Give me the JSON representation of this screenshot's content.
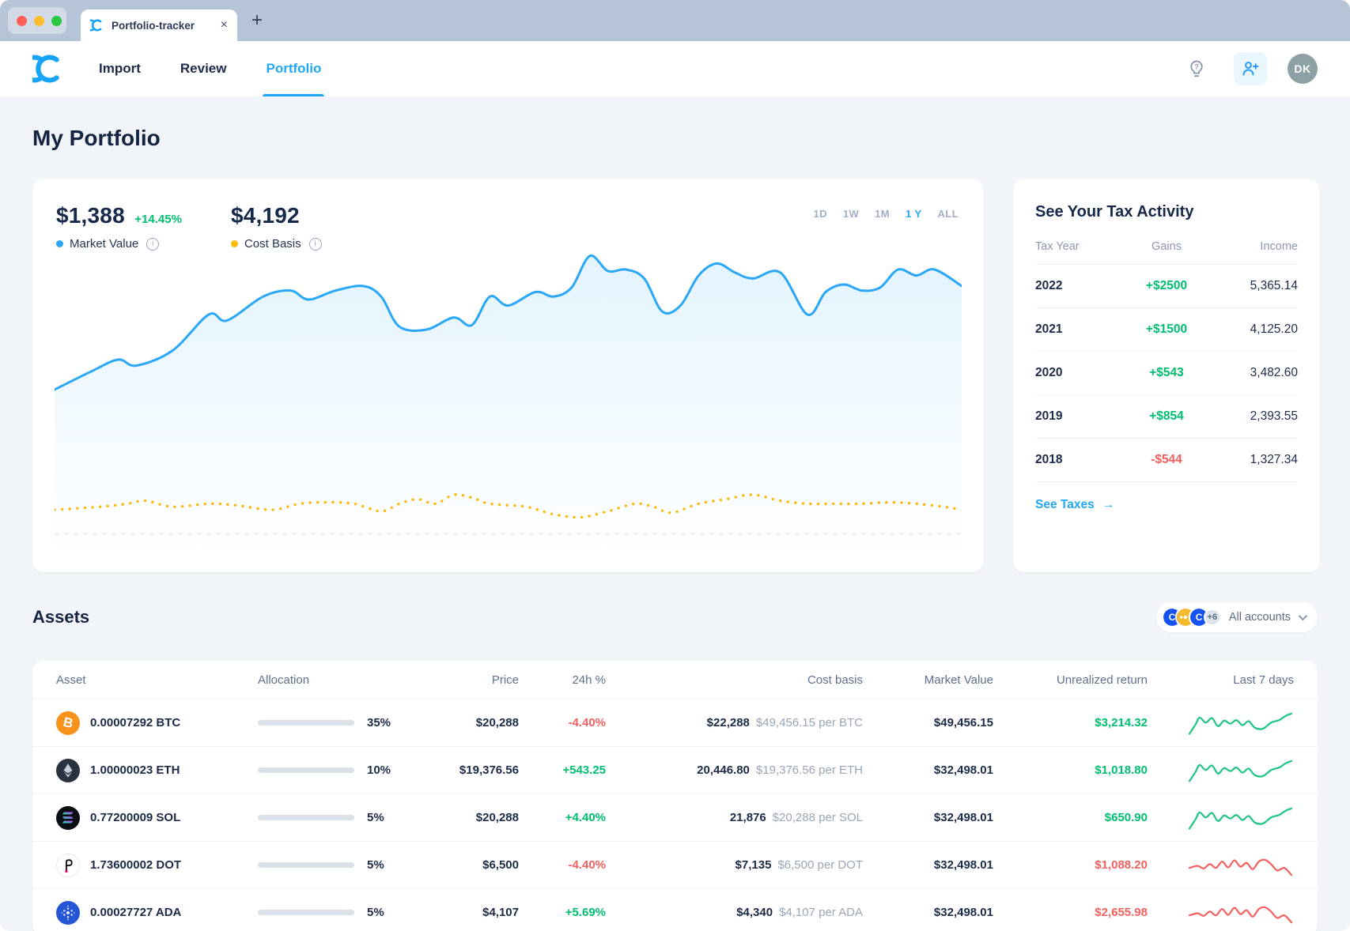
{
  "browser": {
    "tab_title": "Portfolio-tracker"
  },
  "nav": {
    "items": [
      {
        "label": "Import",
        "active": false
      },
      {
        "label": "Review",
        "active": false
      },
      {
        "label": "Portfolio",
        "active": true
      }
    ],
    "avatar_initials": "DK"
  },
  "page": {
    "title": "My Portfolio",
    "assets_heading": "Assets"
  },
  "colors": {
    "accent": "#21A8F5",
    "positive": "#00BF6F",
    "negative": "#F4605E",
    "market_value_blue": "#2AA7F7",
    "cost_basis_yellow": "#FBB90A",
    "spark_up": "#1EC483",
    "spark_down": "#F4605E"
  },
  "chart_card": {
    "market_value": {
      "amount": "$1,388",
      "change": "+14.45%",
      "label": "Market Value"
    },
    "cost_basis": {
      "amount": "$4,192",
      "label": "Cost Basis"
    },
    "ranges": [
      {
        "label": "1D",
        "active": false
      },
      {
        "label": "1W",
        "active": false
      },
      {
        "label": "1M",
        "active": false
      },
      {
        "label": "1 Y",
        "active": true
      },
      {
        "label": "ALL",
        "active": false
      }
    ]
  },
  "chart_data": {
    "type": "line",
    "title": "Portfolio value over 1 year",
    "legend": [
      "Market Value",
      "Cost Basis"
    ],
    "grid": false,
    "baseline_pct": 93,
    "series": [
      {
        "name": "Market Value",
        "color": "#2AA7F7",
        "style": "solid",
        "fill": true,
        "points": [
          [
            0,
            45
          ],
          [
            4,
            39
          ],
          [
            7,
            35
          ],
          [
            9,
            37
          ],
          [
            13,
            32
          ],
          [
            17,
            20
          ],
          [
            19,
            22
          ],
          [
            23,
            14
          ],
          [
            26,
            12
          ],
          [
            28,
            15
          ],
          [
            31,
            12
          ],
          [
            34,
            10.5
          ],
          [
            36,
            14
          ],
          [
            38,
            24
          ],
          [
            41,
            25
          ],
          [
            44,
            21
          ],
          [
            46,
            23.5
          ],
          [
            48,
            14
          ],
          [
            50,
            17
          ],
          [
            53,
            12.5
          ],
          [
            55,
            14
          ],
          [
            57,
            11
          ],
          [
            59,
            0.5
          ],
          [
            61,
            5.5
          ],
          [
            63,
            5
          ],
          [
            65,
            8
          ],
          [
            67,
            19
          ],
          [
            69,
            17
          ],
          [
            71,
            7
          ],
          [
            73,
            3
          ],
          [
            75,
            6
          ],
          [
            77,
            8
          ],
          [
            80,
            6
          ],
          [
            83,
            20
          ],
          [
            85,
            12.5
          ],
          [
            87,
            10
          ],
          [
            89,
            12
          ],
          [
            91,
            11
          ],
          [
            93,
            5
          ],
          [
            95,
            7
          ],
          [
            97,
            5
          ],
          [
            100,
            10.5
          ]
        ]
      },
      {
        "name": "Cost Basis",
        "color": "#FBB90A",
        "style": "dotted",
        "fill": false,
        "points": [
          [
            0,
            85
          ],
          [
            5,
            84
          ],
          [
            8,
            83
          ],
          [
            10,
            82
          ],
          [
            13,
            84
          ],
          [
            17,
            83
          ],
          [
            20,
            83.5
          ],
          [
            24,
            85
          ],
          [
            27,
            83
          ],
          [
            30,
            82.5
          ],
          [
            33,
            83
          ],
          [
            36,
            85.5
          ],
          [
            38,
            83
          ],
          [
            40,
            81.5
          ],
          [
            42,
            83
          ],
          [
            44,
            80
          ],
          [
            46,
            81
          ],
          [
            48,
            83
          ],
          [
            52,
            84
          ],
          [
            55,
            86.5
          ],
          [
            58,
            87.5
          ],
          [
            61,
            85.5
          ],
          [
            64,
            83
          ],
          [
            66,
            84
          ],
          [
            68,
            86
          ],
          [
            71,
            83
          ],
          [
            74,
            81.5
          ],
          [
            77,
            80
          ],
          [
            80,
            82
          ],
          [
            83,
            83
          ],
          [
            86,
            83
          ],
          [
            89,
            83
          ],
          [
            92,
            82.5
          ],
          [
            95,
            83
          ],
          [
            98,
            84
          ],
          [
            100,
            85
          ]
        ]
      }
    ],
    "summary": {
      "market_value": "$1,388",
      "market_value_change": "+14.45%",
      "cost_basis": "$4,192"
    }
  },
  "tax_card": {
    "title": "See Your Tax Activity",
    "columns": [
      "Tax Year",
      "Gains",
      "Income"
    ],
    "rows": [
      {
        "year": "2022",
        "gains": "+$2500",
        "gains_positive": true,
        "income": "5,365.14"
      },
      {
        "year": "2021",
        "gains": "+$1500",
        "gains_positive": true,
        "income": "4,125.20"
      },
      {
        "year": "2020",
        "gains": "+$543",
        "gains_positive": true,
        "income": "3,482.60"
      },
      {
        "year": "2019",
        "gains": "+$854",
        "gains_positive": true,
        "income": "2,393.55"
      },
      {
        "year": "2018",
        "gains": "-$544",
        "gains_positive": false,
        "income": "1,327.34"
      }
    ],
    "link": "See Taxes"
  },
  "accounts_filter": {
    "label": "All accounts",
    "more_badge": "+6"
  },
  "assets_table": {
    "columns": [
      "Asset",
      "Allocation",
      "Price",
      "24h %",
      "Cost basis",
      "Market Value",
      "Unrealized return",
      "Last 7 days"
    ],
    "sparkline_shapes": {
      "up": [
        [
          0,
          92
        ],
        [
          6,
          55
        ],
        [
          10,
          28
        ],
        [
          16,
          48
        ],
        [
          22,
          30
        ],
        [
          28,
          62
        ],
        [
          34,
          40
        ],
        [
          40,
          52
        ],
        [
          46,
          38
        ],
        [
          52,
          58
        ],
        [
          58,
          42
        ],
        [
          64,
          68
        ],
        [
          72,
          72
        ],
        [
          80,
          48
        ],
        [
          88,
          38
        ],
        [
          94,
          22
        ],
        [
          100,
          12
        ]
      ],
      "down": [
        [
          0,
          60
        ],
        [
          8,
          52
        ],
        [
          14,
          62
        ],
        [
          20,
          45
        ],
        [
          26,
          60
        ],
        [
          32,
          35
        ],
        [
          38,
          58
        ],
        [
          44,
          30
        ],
        [
          50,
          55
        ],
        [
          56,
          40
        ],
        [
          62,
          65
        ],
        [
          68,
          35
        ],
        [
          74,
          28
        ],
        [
          80,
          45
        ],
        [
          86,
          70
        ],
        [
          93,
          60
        ],
        [
          100,
          88
        ]
      ]
    },
    "rows": [
      {
        "symbol": "BTC",
        "amount": "0.00007292 BTC",
        "allocation_pct": 35,
        "allocation_label": "35%",
        "price": "$20,288",
        "change": "-4.40%",
        "change_positive": false,
        "cost_basis": "$22,288",
        "cost_basis_per": "$49,456.15 per BTC",
        "market_value": "$49,456.15",
        "unrealized": "$3,214.32",
        "unrealized_positive": true,
        "trend": "up"
      },
      {
        "symbol": "ETH",
        "amount": "1.00000023 ETH",
        "allocation_pct": 10,
        "allocation_label": "10%",
        "price": "$19,376.56",
        "change": "+543.25",
        "change_positive": true,
        "cost_basis": "20,446.80",
        "cost_basis_per": "$19,376.56 per ETH",
        "market_value": "$32,498.01",
        "unrealized": "$1,018.80",
        "unrealized_positive": true,
        "trend": "up"
      },
      {
        "symbol": "SOL",
        "amount": "0.77200009 SOL",
        "allocation_pct": 5,
        "allocation_label": "5%",
        "price": "$20,288",
        "change": "+4.40%",
        "change_positive": true,
        "cost_basis": "21,876",
        "cost_basis_per": "$20,288 per SOL",
        "market_value": "$32,498.01",
        "unrealized": "$650.90",
        "unrealized_positive": true,
        "trend": "up"
      },
      {
        "symbol": "DOT",
        "amount": "1.73600002 DOT",
        "allocation_pct": 5,
        "allocation_label": "5%",
        "price": "$6,500",
        "change": "-4.40%",
        "change_positive": false,
        "cost_basis": "$7,135",
        "cost_basis_per": "$6,500 per DOT",
        "market_value": "$32,498.01",
        "unrealized": "$1,088.20",
        "unrealized_positive": false,
        "trend": "down"
      },
      {
        "symbol": "ADA",
        "amount": "0.00027727 ADA",
        "allocation_pct": 5,
        "allocation_label": "5%",
        "price": "$4,107",
        "change": "+5.69%",
        "change_positive": true,
        "cost_basis": "$4,340",
        "cost_basis_per": "$4,107 per ADA",
        "market_value": "$32,498.01",
        "unrealized": "$2,655.98",
        "unrealized_positive": false,
        "trend": "down"
      }
    ]
  }
}
